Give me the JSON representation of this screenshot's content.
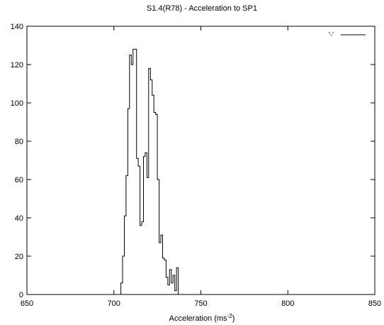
{
  "chart_data": {
    "type": "line",
    "style": "step",
    "title": "S1.4(R78) - Acceleration to SP1",
    "xlabel": "Acceleration (ms",
    "xlabel_sup": "-2",
    "xlabel_close": ")",
    "ylabel": "",
    "xlim": [
      650,
      850
    ],
    "ylim": [
      0,
      140
    ],
    "xticks": [
      650,
      700,
      750,
      800,
      850
    ],
    "yticks": [
      0,
      20,
      40,
      60,
      80,
      100,
      120,
      140
    ],
    "grid": false,
    "legend_position": "top-right",
    "series": [
      {
        "name": "'-'",
        "color": "#000000",
        "x": [
          703.0,
          704.0,
          705.0,
          706.0,
          707.0,
          708.0,
          709.0,
          710.0,
          711.0,
          712.0,
          713.0,
          714.0,
          715.0,
          716.0,
          717.0,
          718.0,
          719.0,
          720.0,
          721.0,
          722.0,
          723.0,
          724.0,
          725.0,
          726.0,
          727.0,
          728.0,
          729.0,
          730.0,
          731.0,
          732.0,
          733.0,
          734.0,
          735.0,
          736.0,
          737.0
        ],
        "y": [
          0,
          6,
          20,
          41,
          62,
          97,
          125,
          120,
          128,
          128,
          71,
          67,
          36,
          38,
          72,
          74,
          61,
          118,
          112,
          104,
          95,
          94,
          60,
          27,
          31,
          19,
          18,
          9,
          5,
          13,
          6,
          10,
          2,
          14,
          0
        ]
      }
    ]
  }
}
